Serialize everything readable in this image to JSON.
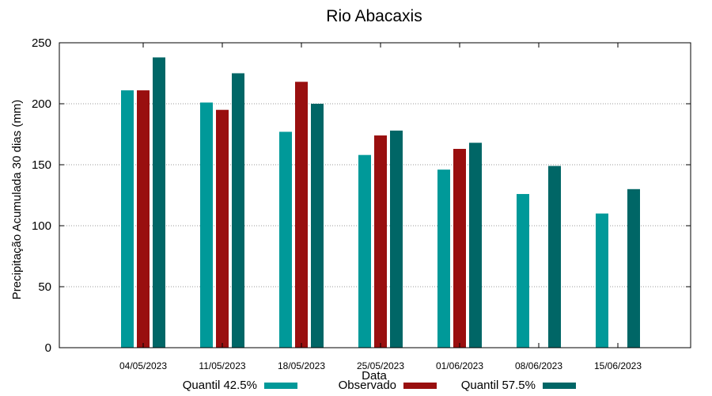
{
  "chart_data": {
    "type": "bar",
    "title": "Rio Abacaxis",
    "xlabel": "Data",
    "ylabel": "Precipitação Acumulada 30 dias (mm)",
    "ylim": [
      0,
      250
    ],
    "yticks": [
      0,
      50,
      100,
      150,
      200,
      250
    ],
    "grid": true,
    "legend_position": "bottom",
    "categories": [
      "04/05/2023",
      "11/05/2023",
      "18/05/2023",
      "25/05/2023",
      "01/06/2023",
      "08/06/2023",
      "15/06/2023"
    ],
    "series": [
      {
        "name": "Quantil 42.5%",
        "color": "#009999",
        "values": [
          211,
          201,
          177,
          158,
          146,
          126,
          110
        ]
      },
      {
        "name": "Observado",
        "color": "#990f0f",
        "values": [
          211,
          195,
          218,
          174,
          163,
          null,
          null
        ]
      },
      {
        "name": "Quantil 57.5%",
        "color": "#006666",
        "values": [
          238,
          225,
          200,
          178,
          168,
          149,
          130
        ]
      }
    ]
  }
}
